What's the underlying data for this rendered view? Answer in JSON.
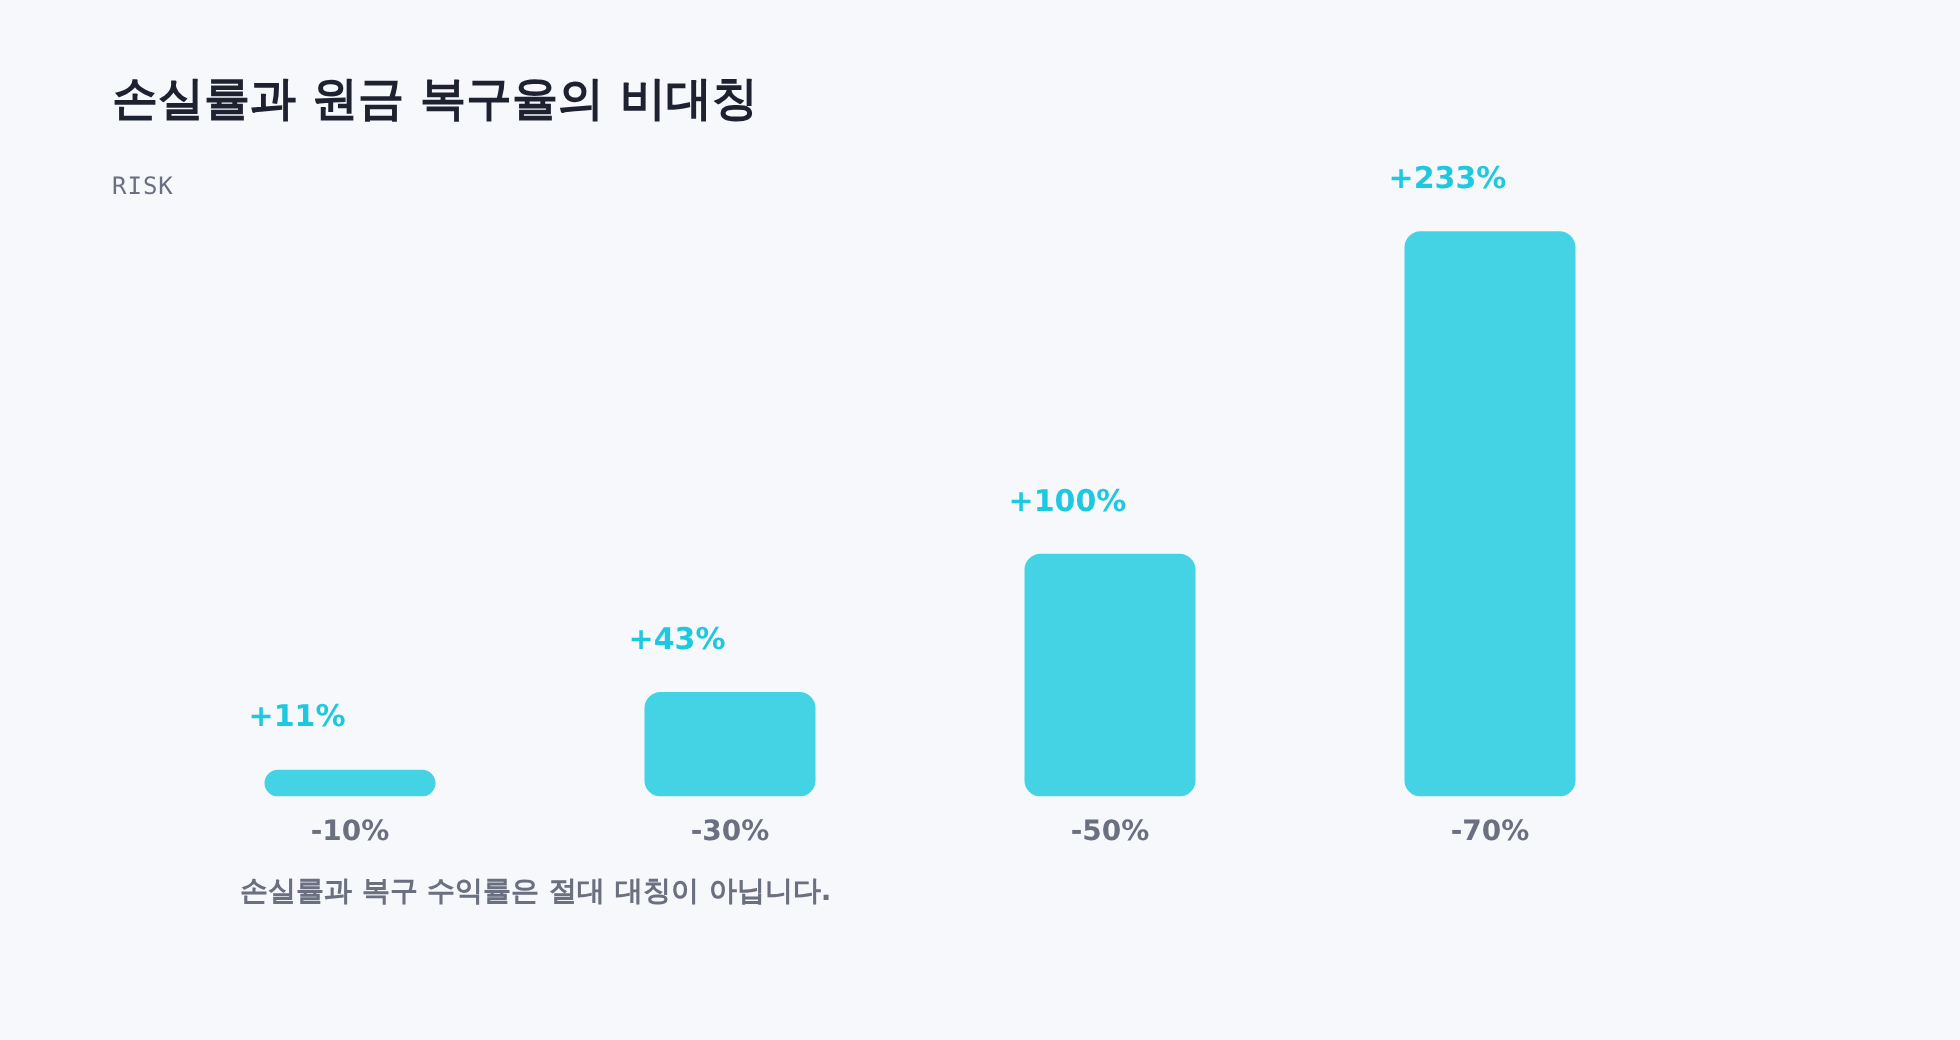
{
  "chart_data": {
    "type": "bar",
    "title": "손실률과 원금 복구율의 비대칭",
    "subtitle": "RISK",
    "categories": [
      "-10%",
      "-30%",
      "-50%",
      "-70%"
    ],
    "values": [
      11,
      43,
      100,
      233
    ],
    "value_labels": [
      "+11%",
      "+43%",
      "+100%",
      "+233%"
    ],
    "color": "#43d3e5",
    "grid": false,
    "legend": false,
    "annotations": [
      "손실률과 복구 수익률은 절대 대칭이 아닙니다."
    ]
  }
}
